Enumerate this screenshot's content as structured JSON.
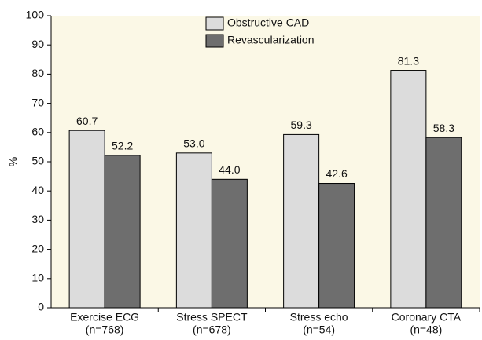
{
  "chart_data": {
    "type": "bar",
    "y_label": "%",
    "categories": [
      [
        "Exercise ECG",
        "(n=768)"
      ],
      [
        "Stress SPECT",
        "(n=678)"
      ],
      [
        "Stress echo",
        "(n=54)"
      ],
      [
        "Coronary CTA",
        "(n=48)"
      ]
    ],
    "series": [
      {
        "name": "Obstructive CAD",
        "color": "#dcdcdc",
        "values": [
          60.7,
          53,
          59.3,
          81.3
        ],
        "value_labels": [
          "60.7",
          "53.0",
          "59.3",
          "81.3"
        ]
      },
      {
        "name": "Revascularization",
        "color": "#6e6e6e",
        "values": [
          52.2,
          44,
          42.6,
          58.3
        ],
        "value_labels": [
          "52.2",
          "44.0",
          "42.6",
          "58.3"
        ]
      }
    ],
    "ylim": [
      0,
      100
    ],
    "yticks": [
      0,
      10,
      20,
      30,
      40,
      50,
      60,
      70,
      80,
      90,
      100
    ],
    "plot_background": "#fbf8e6",
    "legend": "top"
  }
}
